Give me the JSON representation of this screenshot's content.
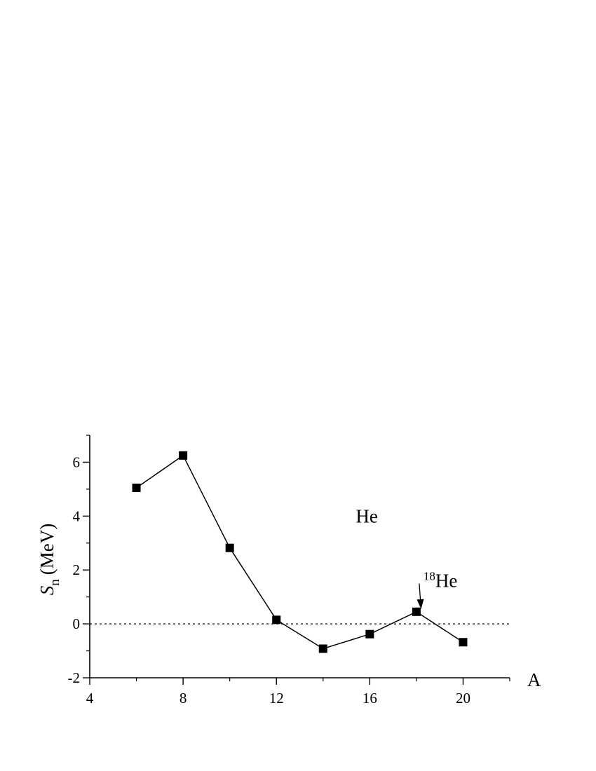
{
  "chart_data": {
    "type": "line",
    "title": "",
    "xlabel": "A",
    "ylabel": {
      "symbol": "S",
      "subscript": "n",
      "unit": "(MeV)"
    },
    "xlim": [
      4,
      22
    ],
    "ylim": [
      -2,
      7
    ],
    "x_ticks": [
      4,
      8,
      12,
      16,
      20
    ],
    "x_minor_ticks": [
      6,
      10,
      14,
      18,
      22
    ],
    "y_ticks": [
      -2,
      0,
      2,
      4,
      6
    ],
    "y_minor_ticks": [
      -1,
      1,
      3,
      5,
      7
    ],
    "grid": false,
    "legend": "none",
    "reference_line": {
      "y": 0,
      "style": "dotted"
    },
    "series": [
      {
        "marker": "square",
        "color": "#000000",
        "x": [
          6,
          8,
          10,
          12,
          14,
          16,
          18,
          20
        ],
        "y": [
          5.05,
          6.25,
          2.82,
          0.15,
          -0.92,
          -0.38,
          0.45,
          -0.68
        ]
      }
    ],
    "annotations": [
      {
        "text": "He",
        "x": 15.4,
        "y": 4.0
      },
      {
        "superscript": "18",
        "text": "He",
        "x": 18.3,
        "y": 1.6,
        "arrow_to": {
          "x": 18.2,
          "y": 0.55
        }
      }
    ]
  }
}
